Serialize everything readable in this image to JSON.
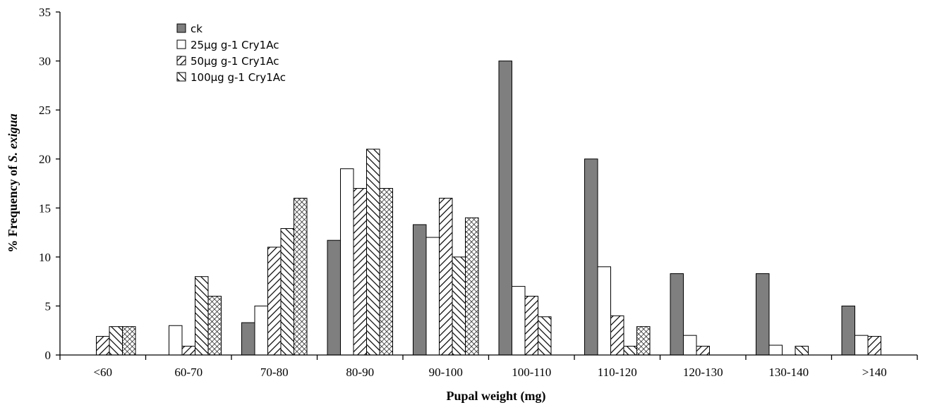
{
  "chart_data": {
    "type": "bar",
    "title": "",
    "xlabel": "Pupal weight (mg)",
    "ylabel_prefix": "% Frequency of ",
    "ylabel_italic": "S. exigua",
    "ylim": [
      0,
      35
    ],
    "yticks": [
      "0",
      "5",
      "10",
      "15",
      "20",
      "25",
      "30",
      "35"
    ],
    "grid": false,
    "legend_position": "top-left",
    "categories": [
      "<60",
      "60-70",
      "70-80",
      "80-90",
      "90-100",
      "100-110",
      "110-120",
      "120-130",
      "130-140",
      ">140"
    ],
    "series": [
      {
        "name": "ck",
        "pattern": "solid-gray",
        "values": [
          0,
          0,
          3.3,
          11.7,
          13.3,
          30,
          20,
          8.3,
          8.3,
          5
        ]
      },
      {
        "name": "25μg g-1 Cry1Ac",
        "pattern": "white",
        "values": [
          0,
          3,
          5,
          19,
          12,
          7,
          9,
          2,
          1,
          2
        ]
      },
      {
        "name": "50μg g-1 Cry1Ac",
        "pattern": "forward-hatch",
        "values": [
          1.9,
          0.9,
          11,
          17,
          16,
          6,
          4,
          0.9,
          0,
          1.9
        ]
      },
      {
        "name": "100μg g-1 Cry1Ac",
        "pattern": "back-hatch",
        "values": [
          2.9,
          8,
          12.9,
          21,
          10,
          3.9,
          0.9,
          0,
          0.9,
          0
        ]
      },
      {
        "name": "",
        "pattern": "crosshatch",
        "values": [
          2.9,
          6,
          16,
          17,
          14,
          0,
          2.9,
          0,
          0,
          0
        ]
      }
    ],
    "colors": {
      "ck": "#7f7f7f",
      "axis": "#000000"
    }
  }
}
